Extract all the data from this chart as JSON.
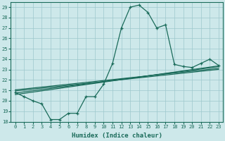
{
  "xlabel": "Humidex (Indice chaleur)",
  "x_values": [
    0,
    1,
    2,
    3,
    4,
    5,
    6,
    7,
    8,
    9,
    10,
    11,
    12,
    13,
    14,
    15,
    16,
    17,
    18,
    19,
    20,
    21,
    22,
    23
  ],
  "main_line": [
    20.8,
    20.4,
    20.0,
    19.7,
    18.2,
    18.2,
    18.8,
    18.8,
    20.4,
    20.4,
    21.6,
    23.6,
    27.0,
    29.0,
    29.2,
    28.5,
    27.0,
    27.3,
    23.5,
    23.3,
    23.2,
    23.6,
    24.0,
    23.4
  ],
  "band_line1": [
    21.05,
    21.14,
    21.23,
    21.32,
    21.41,
    21.5,
    21.59,
    21.68,
    21.77,
    21.86,
    21.95,
    22.04,
    22.13,
    22.22,
    22.31,
    22.4,
    22.49,
    22.58,
    22.67,
    22.76,
    22.85,
    22.94,
    23.03,
    23.12
  ],
  "band_line2": [
    20.95,
    21.04,
    21.13,
    21.22,
    21.31,
    21.4,
    21.49,
    21.58,
    21.67,
    21.76,
    21.85,
    21.94,
    22.03,
    22.12,
    22.21,
    22.3,
    22.39,
    22.48,
    22.57,
    22.66,
    22.75,
    22.84,
    22.93,
    23.02
  ],
  "band_line3": [
    20.75,
    20.86,
    20.97,
    21.08,
    21.19,
    21.3,
    21.41,
    21.52,
    21.63,
    21.74,
    21.85,
    21.96,
    22.07,
    22.18,
    22.29,
    22.4,
    22.51,
    22.62,
    22.73,
    22.84,
    22.95,
    23.06,
    23.17,
    23.28
  ],
  "band_line4": [
    20.6,
    20.72,
    20.84,
    20.96,
    21.08,
    21.2,
    21.32,
    21.44,
    21.56,
    21.68,
    21.8,
    21.92,
    22.04,
    22.16,
    22.28,
    22.4,
    22.52,
    22.64,
    22.76,
    22.88,
    23.0,
    23.12,
    23.24,
    23.36
  ],
  "line_color": "#1a6b5a",
  "bg_color": "#cde8ea",
  "grid_color": "#9dc8cc",
  "ylim_min": 18,
  "ylim_max": 29.5,
  "yticks": [
    18,
    19,
    20,
    21,
    22,
    23,
    24,
    25,
    26,
    27,
    28,
    29
  ],
  "xlim_min": -0.5,
  "xlim_max": 23.5
}
